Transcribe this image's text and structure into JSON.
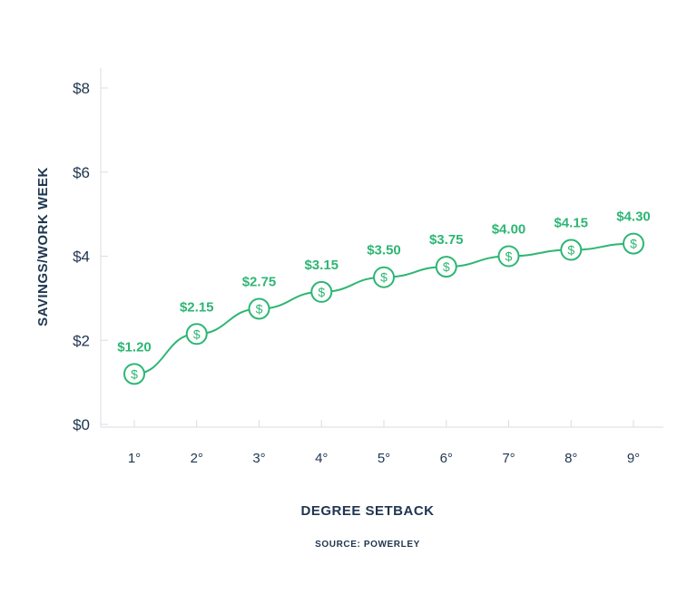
{
  "chart_data": {
    "type": "line",
    "categories": [
      "1°",
      "2°",
      "3°",
      "4°",
      "5°",
      "6°",
      "7°",
      "8°",
      "9°"
    ],
    "values": [
      1.2,
      2.15,
      2.75,
      3.15,
      3.5,
      3.75,
      4.0,
      4.15,
      4.3
    ],
    "data_labels": [
      "$1.20",
      "$2.15",
      "$2.75",
      "$3.15",
      "$3.50",
      "$3.75",
      "$4.00",
      "$4.15",
      "$4.30"
    ],
    "xlabel": "DEGREE SETBACK",
    "ylabel": "SAVINGS/WORK WEEK",
    "ylim": [
      0,
      8
    ],
    "yticks": [
      0,
      2,
      4,
      6,
      8
    ],
    "ytick_labels": [
      "$0",
      "$2",
      "$4",
      "$6",
      "$8"
    ],
    "marker_icon": "dollar-circle-icon",
    "marker_glyph": "$",
    "grid": false,
    "legend": false,
    "line_color": "#2db674",
    "text_color": "#1f3550",
    "axis_color": "#d9dde3"
  },
  "footer": {
    "source": "SOURCE: POWERLEY"
  }
}
